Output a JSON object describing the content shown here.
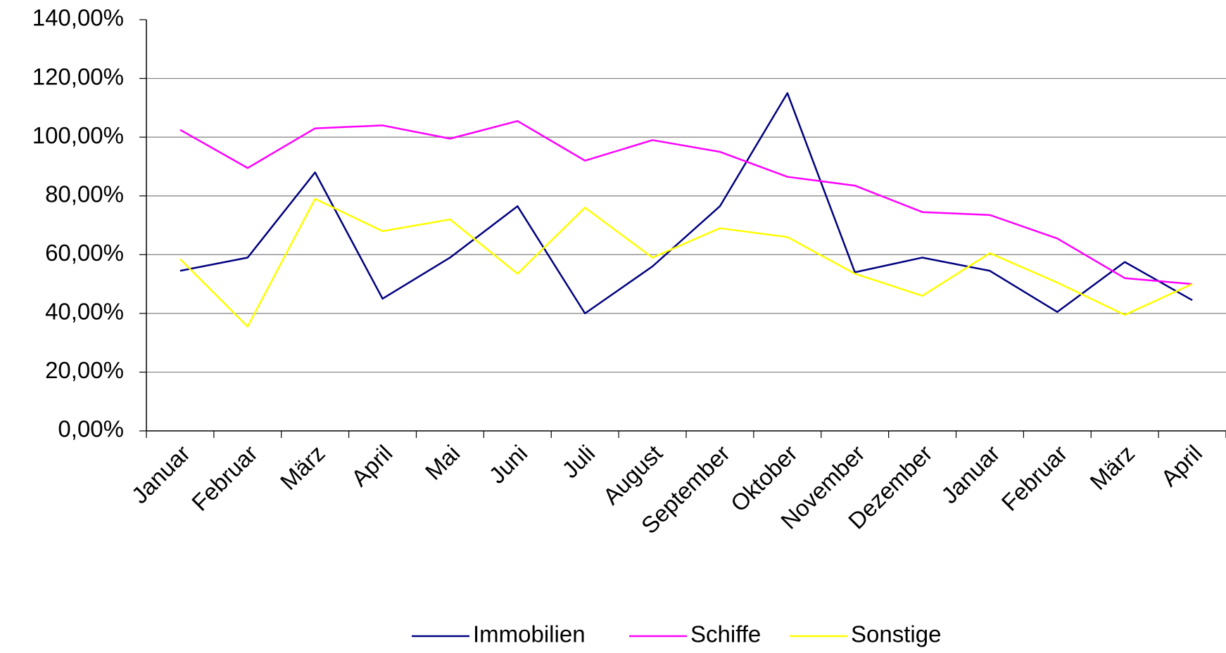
{
  "chart_data": {
    "type": "line",
    "categories": [
      "Januar",
      "Februar",
      "März",
      "April",
      "Mai",
      "Juni",
      "Juli",
      "August",
      "September",
      "Oktober",
      "November",
      "Dezember",
      "Januar",
      "Februar",
      "März",
      "April"
    ],
    "series": [
      {
        "name": "Immobilien",
        "color": "#000080",
        "values": [
          54.5,
          59,
          88,
          45,
          59,
          76.5,
          40,
          56,
          76.5,
          115,
          54,
          59,
          54.5,
          40.5,
          57.5,
          44.5
        ]
      },
      {
        "name": "Schiffe",
        "color": "#ff00ff",
        "values": [
          102.5,
          89.5,
          103,
          104,
          99.5,
          105.5,
          92,
          99,
          95,
          86.5,
          83.5,
          74.5,
          73.5,
          65.5,
          52,
          50
        ]
      },
      {
        "name": "Sonstige",
        "color": "#ffff00",
        "values": [
          58.5,
          35.5,
          79,
          68,
          72,
          53.5,
          76,
          59,
          69,
          66,
          53.5,
          46,
          60.5,
          50.5,
          39.5,
          50
        ]
      }
    ],
    "ylim": [
      0,
      140
    ],
    "yticks": [
      {
        "value": 0,
        "label": "0,00%"
      },
      {
        "value": 20,
        "label": "20,00%"
      },
      {
        "value": 40,
        "label": "40,00%"
      },
      {
        "value": 60,
        "label": "60,00%"
      },
      {
        "value": 80,
        "label": "80,00%"
      },
      {
        "value": 100,
        "label": "100,00%"
      },
      {
        "value": 120,
        "label": "120,00%"
      },
      {
        "value": 140,
        "label": "140,00%"
      }
    ],
    "grid": true,
    "legend": "bottom"
  }
}
